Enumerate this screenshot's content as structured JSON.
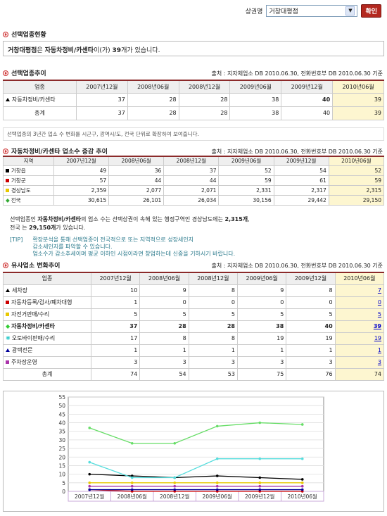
{
  "top": {
    "label": "상권명",
    "selected": "거창대평점",
    "confirm": "확인"
  },
  "section1": {
    "title": "선택업종현황",
    "info_store": "거창대평점",
    "info_mid": "은 ",
    "info_biz": "자동차정비/카센타",
    "info_mid2": "이(가) ",
    "info_count": "39",
    "info_tail": "개가 있습니다."
  },
  "section2": {
    "title": "선택업종추이",
    "source": "출처 : 지자체업소 DB 2010.06.30, 전화번호부 DB 2010.06.30 기준",
    "headers": [
      "업종",
      "2007년12월",
      "2008년06월",
      "2008년12월",
      "2009년06월",
      "2009년12월",
      "2010년06월"
    ],
    "rows": [
      {
        "name": "자동차정비/카센타",
        "values": [
          "37",
          "28",
          "28",
          "38",
          "40",
          "39"
        ]
      },
      {
        "name": "총계",
        "values": [
          "37",
          "28",
          "28",
          "38",
          "40",
          "39"
        ]
      }
    ],
    "note": "선택업종의 3년간 업소 수 변화를 시군구, 광역시/도, 전국 단위로 확장하여 보여줍니다."
  },
  "section3": {
    "title": "자동차정비/카센타 업소수 증감 추이",
    "source": "출처 : 지자체업소 DB 2010.06.30, 전화번호부 DB 2010.06.30 기준",
    "headers": [
      "지역",
      "2007년12월",
      "2008년06월",
      "2008년12월",
      "2009년06월",
      "2009년12월",
      "2010년06월"
    ],
    "rows": [
      {
        "name": "거창읍",
        "color": "#000000",
        "values": [
          "49",
          "36",
          "37",
          "52",
          "54",
          "52"
        ]
      },
      {
        "name": "거창군",
        "color": "#cc0000",
        "values": [
          "57",
          "44",
          "44",
          "59",
          "61",
          "59"
        ]
      },
      {
        "name": "경상남도",
        "color": "#e8c800",
        "values": [
          "2,359",
          "2,077",
          "2,071",
          "2,331",
          "2,317",
          "2,315"
        ]
      },
      {
        "name": "전국",
        "color": "#33aa33",
        "values": [
          "30,615",
          "26,101",
          "26,034",
          "30,156",
          "29,442",
          "29,150"
        ]
      }
    ],
    "para1_a": "선택업종인 ",
    "para1_b": "자동차정비/카센타",
    "para1_c": "의 업소 수는  선택상권이 속해 있는 행정구역인 경상남도에는 ",
    "para1_d": "2,315개",
    "para1_e": ",",
    "para2_a": "전국 는 ",
    "para2_b": "29,150개",
    "para2_c": "가 있습니다.",
    "tip_label": "[TIP]",
    "tip1": "확장분석을 통해 선택업종이 전국적으로 또는 지역적으로 성장세인지",
    "tip2": "감소세인지를 파악할 수 있습니다.",
    "tip3": "업소수가 감소추세이며 평균 이하인 시점이라면 창업하는데 신중을 기하시기 바랍니다."
  },
  "section4": {
    "title": "유사업소 변화추이",
    "source": "출처 : 지자체업소 DB 2010.06.30, 전화번호부 DB 2010.06.30 기준",
    "headers": [
      "업종",
      "2007년12월",
      "2008년06월",
      "2008년12월",
      "2009년06월",
      "2009년12월",
      "2010년06월"
    ],
    "rows": [
      {
        "name": "세차장",
        "marker": "tri",
        "color": "#000000",
        "values": [
          "10",
          "9",
          "8",
          "9",
          "8",
          "7"
        ]
      },
      {
        "name": "자동차등록/검사/폐차대행",
        "marker": "dot",
        "color": "#cc0000",
        "values": [
          "1",
          "0",
          "0",
          "0",
          "0",
          "0"
        ]
      },
      {
        "name": "자전거판매/수리",
        "marker": "dot",
        "color": "#e8c800",
        "values": [
          "5",
          "5",
          "5",
          "5",
          "5",
          "5"
        ]
      },
      {
        "name": "자동차정비/카센타",
        "marker": "diamond",
        "color": "#33cc33",
        "bold": true,
        "values": [
          "37",
          "28",
          "28",
          "38",
          "40",
          "39"
        ]
      },
      {
        "name": "오토바이판매/수리",
        "marker": "x",
        "color": "#33cccc",
        "values": [
          "17",
          "8",
          "8",
          "19",
          "19",
          "19"
        ]
      },
      {
        "name": "광택전문",
        "marker": "tri",
        "color": "#000099",
        "values": [
          "1",
          "1",
          "1",
          "1",
          "1",
          "1"
        ]
      },
      {
        "name": "주차장운영",
        "marker": "dot",
        "color": "#aa33aa",
        "values": [
          "3",
          "3",
          "3",
          "3",
          "3",
          "3"
        ]
      },
      {
        "name": "총계",
        "marker": "none",
        "color": "",
        "total": true,
        "values": [
          "74",
          "54",
          "53",
          "75",
          "76",
          "74"
        ]
      }
    ]
  },
  "chart_data": {
    "type": "line",
    "categories": [
      "2007년12월",
      "2008년06월",
      "2008년12월",
      "2009년06월",
      "2009년12월",
      "2010년06월"
    ],
    "ylim": [
      0,
      55
    ],
    "yticks": [
      "0",
      "5",
      "10",
      "15",
      "20",
      "25",
      "30",
      "35",
      "40",
      "45",
      "50",
      "55"
    ],
    "grid": true,
    "series": [
      {
        "values": [
          10,
          9,
          8,
          9,
          8,
          7
        ],
        "color": "#000000"
      },
      {
        "values": [
          1,
          0,
          0,
          0,
          0,
          0
        ],
        "color": "#cc0000"
      },
      {
        "values": [
          5,
          5,
          5,
          5,
          5,
          5
        ],
        "color": "#e8c800"
      },
      {
        "values": [
          37,
          28,
          28,
          38,
          40,
          39
        ],
        "color": "#66dd66"
      },
      {
        "values": [
          17,
          8,
          8,
          19,
          19,
          19
        ],
        "color": "#55dddd"
      },
      {
        "values": [
          1,
          1,
          1,
          1,
          1,
          1
        ],
        "color": "#000099"
      },
      {
        "values": [
          3,
          3,
          3,
          3,
          3,
          3
        ],
        "color": "#aa33aa"
      }
    ]
  }
}
